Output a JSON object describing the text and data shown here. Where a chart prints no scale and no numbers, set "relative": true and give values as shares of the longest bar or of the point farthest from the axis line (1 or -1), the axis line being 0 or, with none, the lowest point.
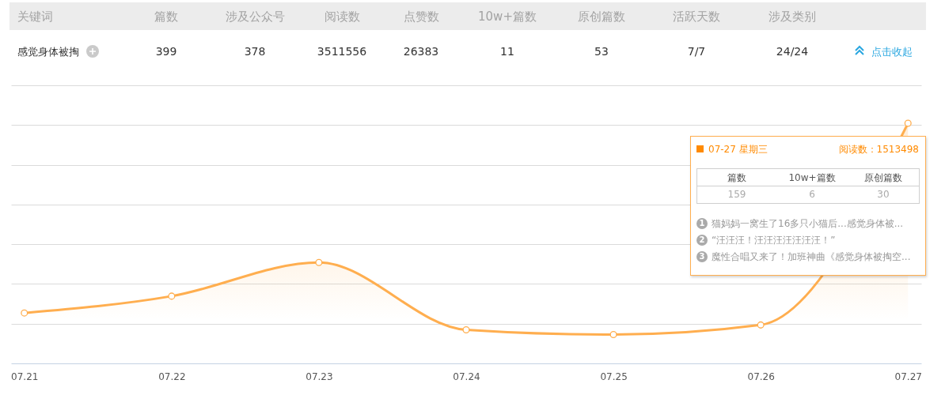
{
  "chart_data": [
    {
      "type": "other",
      "categories": [
        "关键词",
        "篇数",
        "涉及公众号",
        "阅读数",
        "点赞数",
        "10w+篇数",
        "原创篇数",
        "活跃天数",
        "涉及类别",
        null
      ],
      "value_labels": [
        "感觉身体被掏",
        "399",
        "378",
        "3511556",
        "26383",
        "11",
        "53",
        "7/7",
        "24/24",
        "点击收起"
      ]
    },
    {
      "type": "area",
      "categories": [
        "07.21",
        "07.22",
        "07.23",
        "07.24",
        "07.25",
        "07.26",
        "07.27"
      ],
      "relative": true,
      "series": [
        {
          "color": "#ffae4f",
          "values": [
            0.21,
            0.28,
            0.42,
            0.14,
            0.12,
            0.16,
            1
          ]
        }
      ],
      "grid": "y",
      "marker": "circle",
      "annotations": [
        "07-27 星期三",
        "阅读数：1513498",
        "篇数",
        "10w+篇数",
        "原创篇数",
        "159",
        "6",
        "30",
        "1",
        "猫妈妈一窝生了16多只小猫后...感觉身体被...",
        "2",
        "“汪汪汪！汪汪汪汪汪汪汪！”",
        "3",
        "魔性合唱又来了！加班神曲《感觉身体被掏空..."
      ]
    }
  ]
}
